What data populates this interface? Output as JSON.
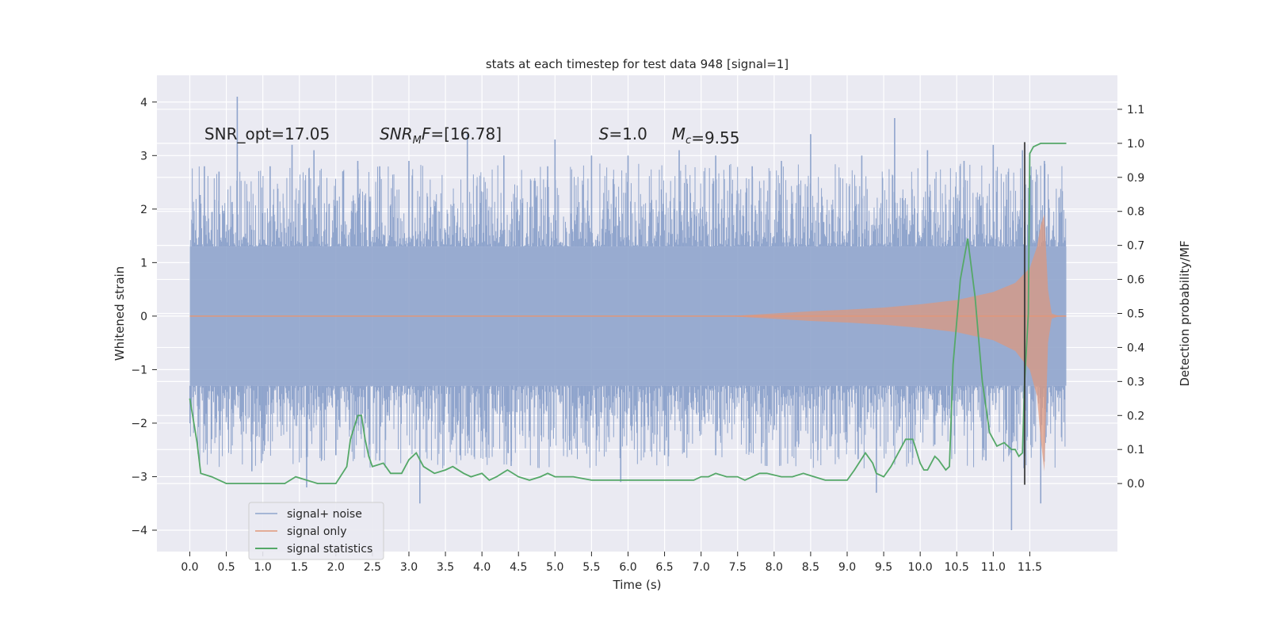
{
  "chart_data": {
    "type": "line",
    "title": "stats at each timestep for test data 948 [signal=1]",
    "xlabel": "Time (s)",
    "ylabel_left": "Whitened strain",
    "ylabel_right": "Detection probability/MF",
    "xlim": [
      -0.45,
      12.7
    ],
    "ylim_left": [
      -4.4,
      4.5
    ],
    "ylim_right": [
      -0.2,
      1.2
    ],
    "x_ticks": [
      0.0,
      0.5,
      1.0,
      1.5,
      2.0,
      2.5,
      3.0,
      3.5,
      4.0,
      4.5,
      5.0,
      5.5,
      6.0,
      6.5,
      7.0,
      7.5,
      8.0,
      8.5,
      9.0,
      9.5,
      10.0,
      10.5,
      11.0,
      11.5
    ],
    "x_tick_labels": [
      "0.0",
      "0.5",
      "1.0",
      "1.5",
      "2.0",
      "2.5",
      "3.0",
      "3.5",
      "4.0",
      "4.5",
      "5.0",
      "5.5",
      "6.0",
      "6.5",
      "7.0",
      "7.5",
      "8.0",
      "8.5",
      "9.0",
      "9.5",
      "10.0",
      "10.5",
      "11.0",
      "11.5"
    ],
    "y_left_ticks": [
      -4,
      -3,
      -2,
      -1,
      0,
      1,
      2,
      3,
      4
    ],
    "y_left_tick_labels": [
      "−4",
      "−3",
      "−2",
      "−1",
      "0",
      "1",
      "2",
      "3",
      "4"
    ],
    "y_right_ticks": [
      0.0,
      0.1,
      0.2,
      0.3,
      0.4,
      0.5,
      0.6,
      0.7,
      0.8,
      0.9,
      1.0,
      1.1
    ],
    "y_right_tick_labels": [
      "0.0",
      "0.1",
      "0.2",
      "0.3",
      "0.4",
      "0.5",
      "0.6",
      "0.7",
      "0.8",
      "0.9",
      "1.0",
      "1.1"
    ],
    "grid": true,
    "legend_position": "bottom-left",
    "colors": {
      "background": "#eaeaf2",
      "grid": "#ffffff",
      "signal_noise": "#8fa4cc",
      "signal_only": "#e0977a",
      "statistics": "#55a868",
      "marker": "#333333"
    },
    "annotations": [
      {
        "text": "SNR_opt=17.05",
        "x": 0.2,
        "y": 3.3
      },
      {
        "text": "=[16.78]",
        "math": "SNR",
        "sub": "M",
        "tail": "F",
        "x": 2.6,
        "y": 3.3
      },
      {
        "text": "=1.0",
        "math": "S",
        "x": 5.6,
        "y": 3.3
      },
      {
        "text": "=9.55",
        "math": "M",
        "sub": "c",
        "x": 6.6,
        "y": 3.3
      }
    ],
    "vline_x": 11.43,
    "series": [
      {
        "name": "signal+ noise",
        "kind": "noise_band",
        "x_range": [
          0.0,
          12.0
        ],
        "core_amplitude": 1.3,
        "outlier_peaks_high": [
          [
            0.2,
            2.8
          ],
          [
            0.4,
            2.7
          ],
          [
            0.65,
            4.1
          ],
          [
            1.1,
            2.8
          ],
          [
            1.4,
            3.2
          ],
          [
            1.7,
            3.1
          ],
          [
            2.3,
            2.9
          ],
          [
            2.6,
            2.8
          ],
          [
            3.0,
            2.9
          ],
          [
            3.8,
            3.4
          ],
          [
            4.3,
            3.0
          ],
          [
            4.9,
            2.8
          ],
          [
            5.0,
            3.3
          ],
          [
            5.5,
            3.0
          ],
          [
            6.0,
            3.0
          ],
          [
            6.7,
            3.1
          ],
          [
            7.2,
            3.0
          ],
          [
            7.7,
            2.8
          ],
          [
            8.1,
            2.9
          ],
          [
            8.5,
            3.4
          ],
          [
            9.2,
            3.0
          ],
          [
            9.65,
            3.7
          ],
          [
            10.1,
            3.1
          ],
          [
            10.6,
            2.9
          ],
          [
            11.0,
            3.2
          ],
          [
            11.4,
            3.1
          ],
          [
            11.7,
            2.9
          ]
        ],
        "outlier_peaks_low": [
          [
            0.3,
            -2.3
          ],
          [
            0.85,
            -2.9
          ],
          [
            1.6,
            -3.2
          ],
          [
            2.0,
            -2.6
          ],
          [
            2.6,
            -2.7
          ],
          [
            3.15,
            -3.5
          ],
          [
            3.7,
            -2.6
          ],
          [
            4.4,
            -2.8
          ],
          [
            5.2,
            -2.5
          ],
          [
            5.9,
            -3.1
          ],
          [
            6.5,
            -2.6
          ],
          [
            7.2,
            -2.6
          ],
          [
            7.9,
            -2.8
          ],
          [
            8.6,
            -2.5
          ],
          [
            9.4,
            -3.3
          ],
          [
            10.2,
            -2.4
          ],
          [
            10.9,
            -2.7
          ],
          [
            11.25,
            -4.0
          ],
          [
            11.65,
            -3.5
          ]
        ]
      },
      {
        "name": "signal only",
        "kind": "chirp",
        "x": [
          0.0,
          7.0,
          7.5,
          8.0,
          8.5,
          9.0,
          9.5,
          10.0,
          10.5,
          11.0,
          11.3,
          11.5,
          11.6,
          11.65,
          11.7,
          11.75,
          11.8,
          11.9,
          12.0
        ],
        "envelope": [
          0.0,
          0.0,
          0.01,
          0.05,
          0.09,
          0.12,
          0.16,
          0.22,
          0.3,
          0.45,
          0.62,
          0.9,
          1.3,
          1.7,
          1.9,
          0.5,
          0.05,
          0.0,
          0.0
        ],
        "envelope_low": [
          0.0,
          0.0,
          -0.01,
          -0.05,
          -0.09,
          -0.12,
          -0.16,
          -0.22,
          -0.3,
          -0.45,
          -0.65,
          -1.0,
          -1.5,
          -2.3,
          -2.9,
          -0.5,
          -0.05,
          0.0,
          0.0
        ]
      },
      {
        "name": "signal statistics",
        "kind": "line",
        "axis": "right",
        "x": [
          0.0,
          0.1,
          0.15,
          0.3,
          0.5,
          0.75,
          1.0,
          1.3,
          1.45,
          1.6,
          1.75,
          2.0,
          2.15,
          2.2,
          2.3,
          2.35,
          2.4,
          2.45,
          2.5,
          2.65,
          2.75,
          2.9,
          3.0,
          3.1,
          3.2,
          3.35,
          3.5,
          3.6,
          3.75,
          3.85,
          4.0,
          4.1,
          4.2,
          4.35,
          4.5,
          4.65,
          4.8,
          4.9,
          5.0,
          5.1,
          5.25,
          5.5,
          5.6,
          5.9,
          6.1,
          6.4,
          6.6,
          6.8,
          6.9,
          7.0,
          7.1,
          7.2,
          7.35,
          7.5,
          7.6,
          7.8,
          7.9,
          8.1,
          8.25,
          8.4,
          8.55,
          8.7,
          9.0,
          9.1,
          9.25,
          9.35,
          9.4,
          9.5,
          9.6,
          9.8,
          9.9,
          10.0,
          10.05,
          10.1,
          10.2,
          10.25,
          10.35,
          10.4,
          10.45,
          10.55,
          10.65,
          10.75,
          10.85,
          10.95,
          11.05,
          11.15,
          11.25,
          11.3,
          11.35,
          11.4,
          11.43,
          11.48,
          11.5,
          11.55,
          11.65,
          11.75,
          12.0
        ],
        "y": [
          0.25,
          0.12,
          0.03,
          0.02,
          0.0,
          0.0,
          0.0,
          0.0,
          0.02,
          0.01,
          0.0,
          0.0,
          0.05,
          0.13,
          0.2,
          0.2,
          0.13,
          0.08,
          0.05,
          0.06,
          0.03,
          0.03,
          0.07,
          0.09,
          0.05,
          0.03,
          0.04,
          0.05,
          0.03,
          0.02,
          0.03,
          0.01,
          0.02,
          0.04,
          0.02,
          0.01,
          0.02,
          0.03,
          0.02,
          0.02,
          0.02,
          0.01,
          0.01,
          0.01,
          0.01,
          0.01,
          0.01,
          0.01,
          0.01,
          0.02,
          0.02,
          0.03,
          0.02,
          0.02,
          0.01,
          0.03,
          0.03,
          0.02,
          0.02,
          0.03,
          0.02,
          0.01,
          0.01,
          0.04,
          0.09,
          0.06,
          0.03,
          0.02,
          0.05,
          0.13,
          0.13,
          0.06,
          0.04,
          0.04,
          0.08,
          0.07,
          0.04,
          0.05,
          0.35,
          0.6,
          0.72,
          0.55,
          0.3,
          0.15,
          0.11,
          0.12,
          0.1,
          0.1,
          0.08,
          0.09,
          0.3,
          0.5,
          0.97,
          0.99,
          1.0,
          1.0,
          1.0
        ]
      }
    ]
  }
}
